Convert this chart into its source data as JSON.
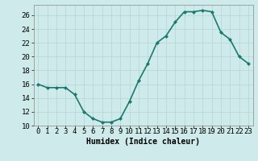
{
  "x": [
    0,
    1,
    2,
    3,
    4,
    5,
    6,
    7,
    8,
    9,
    10,
    11,
    12,
    13,
    14,
    15,
    16,
    17,
    18,
    19,
    20,
    21,
    22,
    23
  ],
  "y": [
    16,
    15.5,
    15.5,
    15.5,
    14.5,
    12,
    11,
    10.5,
    10.5,
    11,
    13.5,
    16.5,
    19,
    22,
    23,
    25,
    26.5,
    26.5,
    26.7,
    26.5,
    23.5,
    22.5,
    20,
    19
  ],
  "line_color": "#1a7a6e",
  "marker": "D",
  "marker_size": 2.0,
  "bg_color": "#ceeaea",
  "grid_color": "#b8d8d8",
  "xlabel": "Humidex (Indice chaleur)",
  "xlim": [
    -0.5,
    23.5
  ],
  "ylim": [
    10,
    27.5
  ],
  "yticks": [
    10,
    12,
    14,
    16,
    18,
    20,
    22,
    24,
    26
  ],
  "xticks": [
    0,
    1,
    2,
    3,
    4,
    5,
    6,
    7,
    8,
    9,
    10,
    11,
    12,
    13,
    14,
    15,
    16,
    17,
    18,
    19,
    20,
    21,
    22,
    23
  ],
  "xlabel_fontsize": 7,
  "tick_fontsize": 6.5,
  "linewidth": 1.2
}
